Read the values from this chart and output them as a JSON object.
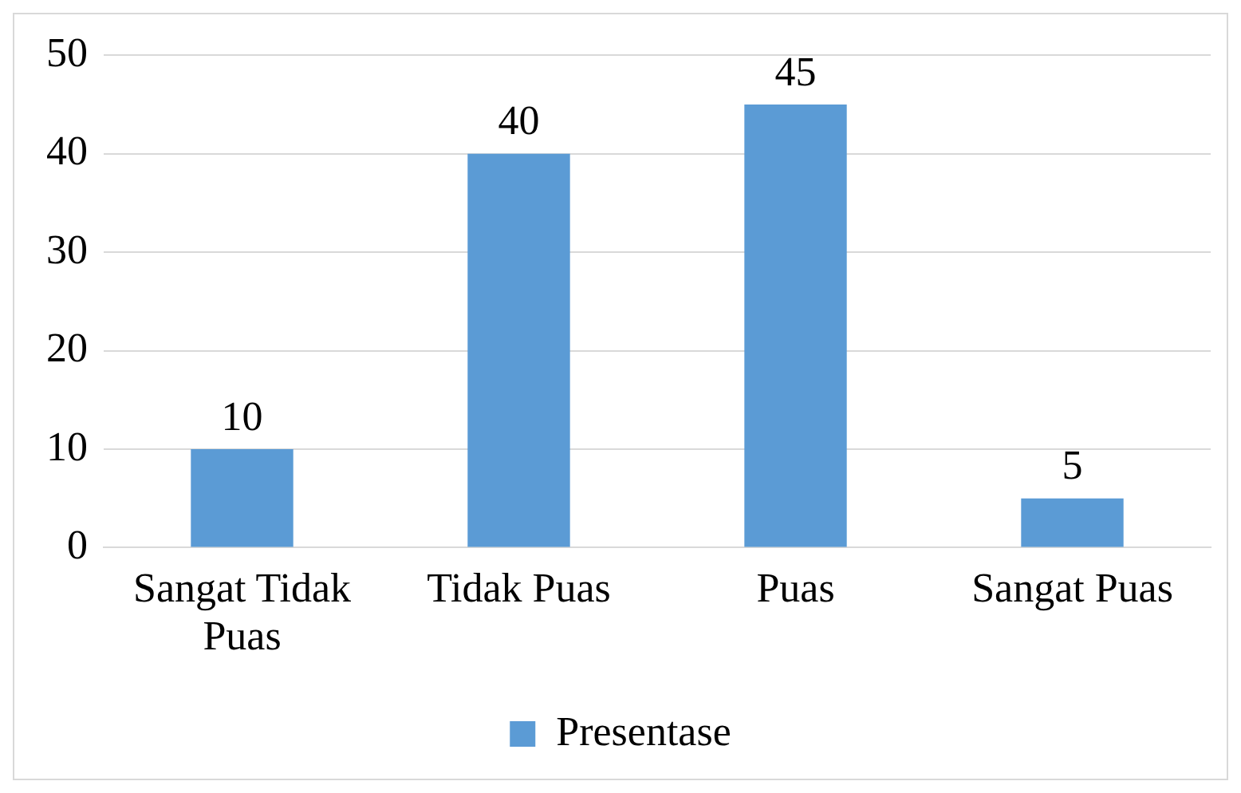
{
  "chart_data": {
    "type": "bar",
    "categories": [
      "Sangat Tidak Puas",
      "Tidak Puas",
      "Puas",
      "Sangat Puas"
    ],
    "series": [
      {
        "name": "Presentase",
        "color": "#5b9bd5",
        "values": [
          10,
          40,
          45,
          5
        ]
      }
    ],
    "ylim": [
      0,
      50
    ],
    "yticks": [
      0,
      10,
      20,
      30,
      40,
      50
    ],
    "grid": "y",
    "legend": "bottom",
    "data_labels": true
  }
}
